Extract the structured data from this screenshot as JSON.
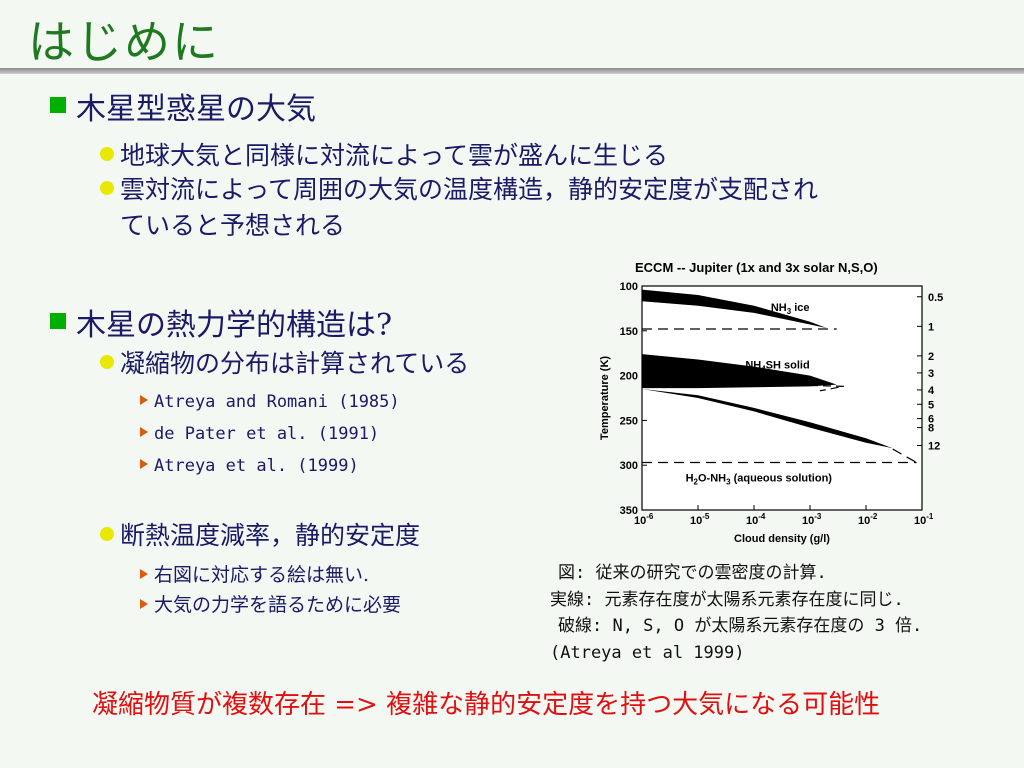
{
  "title": "はじめに",
  "sections": [
    {
      "heading": "木星型惑星の大気"
    },
    {
      "heading": "木星の熱力学的構造は?"
    }
  ],
  "bullets": {
    "b1": "地球大気と同様に対流によって雲が盛んに生じる",
    "b2_line1": "雲対流によって周囲の大気の温度構造，静的安定度が支配され",
    "b2_line2": "ていると予想される",
    "b3": "凝縮物の分布は計算されている",
    "b4": "断熱温度減率，静的安定度"
  },
  "refs": [
    "Atreya and Romani (1985)",
    "de Pater et al. (1991)",
    "Atreya et al. (1999)"
  ],
  "notes": [
    "右図に対応する絵は無い.",
    "大気の力学を語るために必要"
  ],
  "caption": [
    "図: 従来の研究での雲密度の計算.",
    "実線: 元素存在度が太陽系元素存在度に同じ.",
    "破線: N, S, O が太陽系元素存在度の 3 倍.",
    "(Atreya et al 1999)"
  ],
  "conclusion": "凝縮物質が複数存在 => 複雑な静的安定度を持つ大気になる可能性",
  "colors": {
    "title": "#1f7a1f",
    "text": "#1a1a66",
    "accent_red": "#e01010",
    "square_bullet": "#00b000",
    "dot_bullet": "#e8e800",
    "triangle_bullet": "#e05a10"
  },
  "chart_data": {
    "type": "area",
    "title": "ECCM -- Jupiter (1x and 3x solar N,S,O)",
    "xlabel": "Cloud density (g/l)",
    "ylabel": "Temperature (K)",
    "x_scale": "log",
    "xlim": [
      1e-06,
      0.1
    ],
    "ylim": [
      100,
      350
    ],
    "y_inverted": true,
    "x_ticks": [
      "10-6",
      "10-5",
      "10-4",
      "10-3",
      "10-2",
      "10-1"
    ],
    "y_ticks": [
      100,
      150,
      200,
      250,
      300,
      350
    ],
    "right_axis_ticks": [
      "0.5",
      "1",
      "2",
      "3",
      "4",
      "5",
      "6",
      "8",
      "12"
    ],
    "series": [
      {
        "name": "NH3 ice",
        "label_main": "NH",
        "label_sub": "3",
        "label_rest": " ice",
        "x": [
          1e-06,
          1e-05,
          0.0001,
          0.001,
          0.002
        ],
        "y_top": [
          104,
          110,
          122,
          140,
          147
        ],
        "y_bottom": [
          117,
          122,
          130,
          143,
          147
        ]
      },
      {
        "name": "NH4SH solid",
        "label_main": "NH",
        "label_sub": "4",
        "label_rest": "SH solid",
        "x": [
          1e-06,
          1e-05,
          0.0001,
          0.001,
          0.003
        ],
        "y_top": [
          176,
          182,
          190,
          200,
          210
        ],
        "y_bottom": [
          214,
          214,
          213,
          212,
          210
        ]
      },
      {
        "name": "H2O-NH3 (aqueous solution)",
        "label_main": "H",
        "label_sub": "2",
        "label_rest": "O-NH",
        "label_sub2": "3",
        "label_rest2": " (aqueous solution)",
        "x": [
          1e-06,
          1e-05,
          0.0001,
          0.001,
          0.01,
          0.03
        ],
        "y_top": [
          215,
          222,
          236,
          252,
          270,
          281
        ],
        "y_bottom": [
          215,
          225,
          240,
          258,
          275,
          281
        ]
      }
    ]
  }
}
